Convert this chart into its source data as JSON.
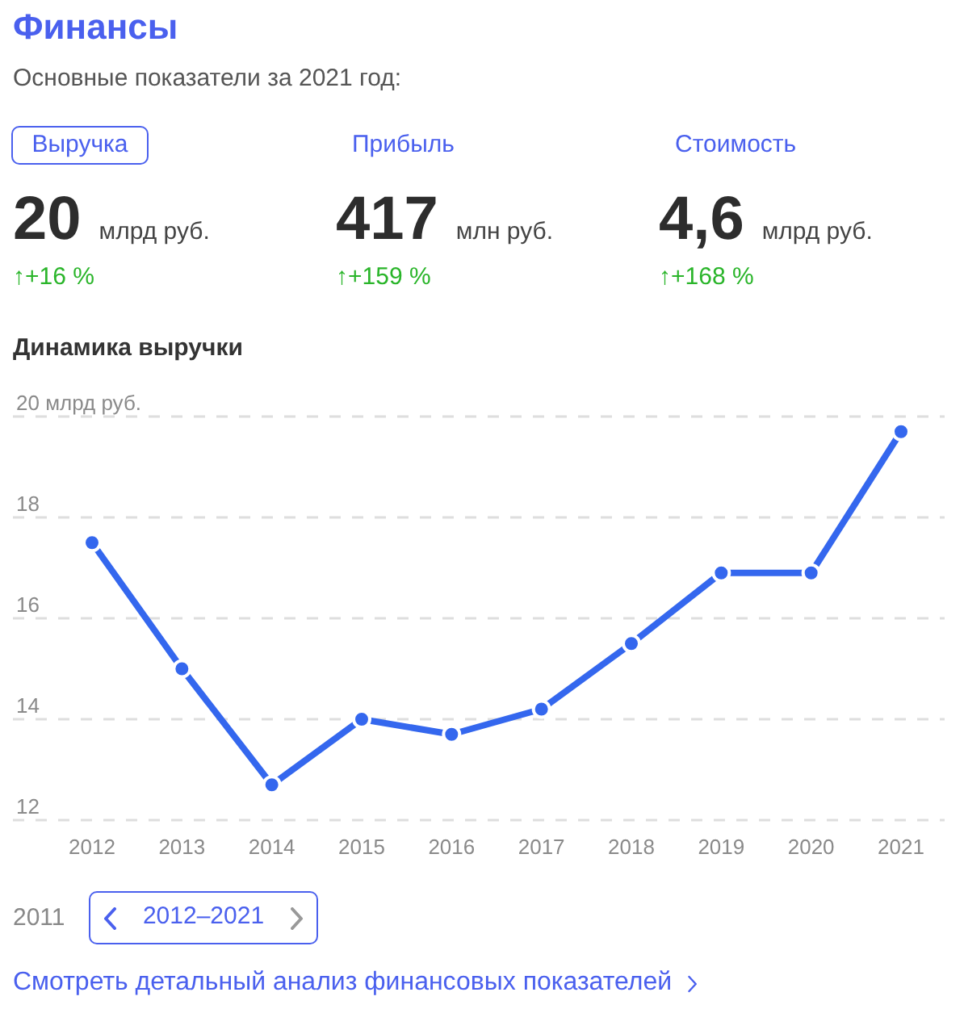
{
  "chart_data": [
    {
      "type": "other",
      "title": "Финансы",
      "subtitle": "Основные показатели за 2021 год:",
      "annotations": [
        "Выручка",
        "Прибыль",
        "Стоимость",
        "20",
        "млрд руб.",
        "417",
        "млн руб.",
        "4,6",
        "млрд руб.",
        "↑+16 %",
        "↑+159 %",
        "↑+168 %"
      ]
    },
    {
      "type": "line",
      "title": "Динамика выручки",
      "categories": [
        "2012",
        "2013",
        "2014",
        "2015",
        "2016",
        "2017",
        "2018",
        "2019",
        "2020",
        "2021"
      ],
      "values": [
        17.5,
        15.0,
        12.7,
        14.0,
        13.7,
        14.2,
        15.5,
        16.9,
        16.9,
        19.7
      ],
      "color": "#3467ee",
      "ylim": [
        12,
        20
      ],
      "yticks": [
        12,
        14,
        16,
        18,
        {
          "value": 20,
          "label": "20 млрд руб."
        }
      ],
      "grid": "y",
      "marker": "circle",
      "annotations": [
        "2011",
        "2012–2021",
        "Смотреть детальный анализ финансовых показателей"
      ]
    }
  ]
}
